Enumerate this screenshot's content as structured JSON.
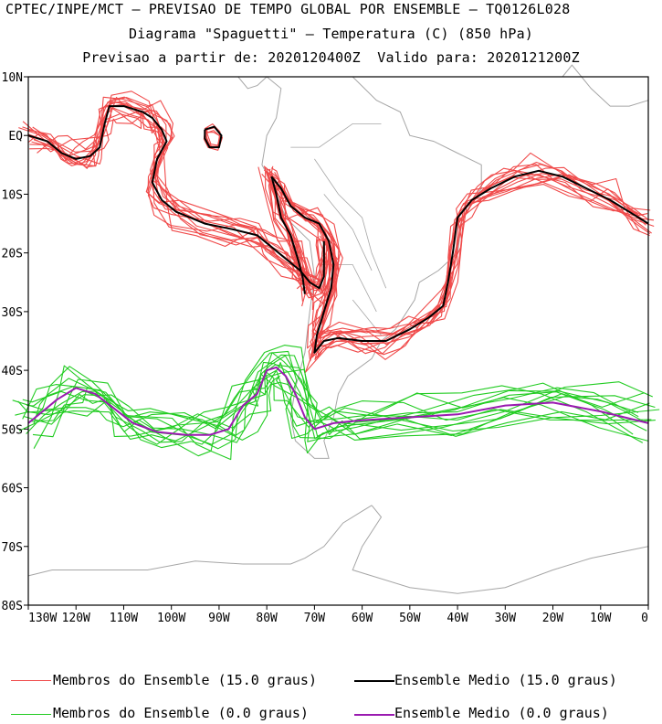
{
  "title": {
    "line1": "CPTEC/INPE/MCT – PREVISAO DE TEMPO GLOBAL POR ENSEMBLE – TQ0126L028",
    "line2": "Diagrama \"Spaguetti\" – Temperatura (C) (850 hPa)",
    "line3": "Previsao a partir de: 2020120400Z  Valido para: 2020121200Z"
  },
  "chart_data": {
    "type": "line",
    "projection": "lon-lat map",
    "xlim": [
      -130,
      0
    ],
    "ylim": [
      -80,
      10
    ],
    "x_ticks": [
      {
        "value": -130,
        "label": "130W"
      },
      {
        "value": -120,
        "label": "120W"
      },
      {
        "value": -110,
        "label": "110W"
      },
      {
        "value": -100,
        "label": "100W"
      },
      {
        "value": -90,
        "label": "90W"
      },
      {
        "value": -80,
        "label": "80W"
      },
      {
        "value": -70,
        "label": "70W"
      },
      {
        "value": -60,
        "label": "60W"
      },
      {
        "value": -50,
        "label": "50W"
      },
      {
        "value": -40,
        "label": "40W"
      },
      {
        "value": -30,
        "label": "30W"
      },
      {
        "value": -20,
        "label": "20W"
      },
      {
        "value": -10,
        "label": "10W"
      },
      {
        "value": 0,
        "label": "0"
      }
    ],
    "y_ticks": [
      {
        "value": 10,
        "label": "10N"
      },
      {
        "value": 0,
        "label": "EQ"
      },
      {
        "value": -10,
        "label": "10S"
      },
      {
        "value": -20,
        "label": "20S"
      },
      {
        "value": -30,
        "label": "30S"
      },
      {
        "value": -40,
        "label": "40S"
      },
      {
        "value": -50,
        "label": "50S"
      },
      {
        "value": -60,
        "label": "60S"
      },
      {
        "value": -70,
        "label": "70S"
      },
      {
        "value": -80,
        "label": "80S"
      }
    ],
    "colors": {
      "member15": "#f04a4a",
      "mean15": "#000000",
      "member0": "#22cc22",
      "mean0": "#9a1ab0",
      "coast": "#a6a6a6"
    },
    "legend": [
      {
        "label": "Membros do Ensemble (15.0 graus)",
        "color": "#f04a4a"
      },
      {
        "label": "Ensemble Medio (15.0 graus)",
        "color": "#000000"
      },
      {
        "label": "Membros do Ensemble (0.0 graus)",
        "color": "#22cc22"
      },
      {
        "label": "Ensemble Medio (0.0 graus)",
        "color": "#9a1ab0"
      }
    ],
    "series": [
      {
        "name": "Ensemble Medio (15.0 graus) - Pacific",
        "color": "#000000",
        "points": [
          [
            -130,
            0
          ],
          [
            -126,
            -1
          ],
          [
            -123,
            -3
          ],
          [
            -120,
            -4
          ],
          [
            -117,
            -3.5
          ],
          [
            -115,
            -2
          ],
          [
            -114,
            2
          ],
          [
            -113,
            5
          ],
          [
            -110,
            5
          ],
          [
            -106,
            4
          ],
          [
            -104,
            3
          ],
          [
            -102,
            1
          ],
          [
            -101,
            -1
          ],
          [
            -103,
            -4
          ],
          [
            -104,
            -8
          ],
          [
            -102,
            -11
          ],
          [
            -99,
            -13
          ],
          [
            -93,
            -15
          ],
          [
            -87,
            -16
          ],
          [
            -82,
            -17
          ],
          [
            -79,
            -19
          ],
          [
            -76,
            -21
          ],
          [
            -73,
            -23
          ],
          [
            -71,
            -25
          ],
          [
            -69,
            -26
          ],
          [
            -68,
            -24
          ],
          [
            -68,
            -20
          ],
          [
            -68,
            -18
          ]
        ]
      },
      {
        "name": "Ensemble Medio (15.0 graus) - small loop",
        "color": "#000000",
        "points": [
          [
            -93,
            1
          ],
          [
            -91,
            1.5
          ],
          [
            -89.5,
            0
          ],
          [
            -90,
            -2
          ],
          [
            -92,
            -2
          ],
          [
            -93,
            -0.5
          ],
          [
            -93,
            1
          ]
        ]
      },
      {
        "name": "Ensemble Medio (15.0 graus) - Andes loop",
        "color": "#000000",
        "points": [
          [
            -79,
            -7
          ],
          [
            -77,
            -9
          ],
          [
            -75,
            -12
          ],
          [
            -72,
            -14
          ],
          [
            -69,
            -15
          ],
          [
            -67,
            -18
          ],
          [
            -66,
            -22
          ],
          [
            -66.5,
            -26
          ],
          [
            -68,
            -30
          ],
          [
            -69.5,
            -34
          ],
          [
            -70,
            -37
          ],
          [
            -68,
            -35
          ],
          [
            -65,
            -34.5
          ],
          [
            -60,
            -35
          ],
          [
            -55,
            -35
          ],
          [
            -50,
            -33
          ],
          [
            -46,
            -31
          ],
          [
            -43,
            -29
          ],
          [
            -42,
            -25
          ],
          [
            -41,
            -20
          ],
          [
            -40,
            -14
          ],
          [
            -37,
            -11
          ],
          [
            -33,
            -9
          ],
          [
            -28,
            -7
          ],
          [
            -23,
            -6
          ],
          [
            -18,
            -7
          ],
          [
            -13,
            -9
          ],
          [
            -8,
            -11
          ],
          [
            -4,
            -13
          ],
          [
            0,
            -15
          ]
        ]
      },
      {
        "name": "Ensemble Medio (15.0 graus) - coastal",
        "color": "#000000",
        "points": [
          [
            -79,
            -7
          ],
          [
            -78,
            -10
          ],
          [
            -77,
            -14
          ],
          [
            -75,
            -17
          ],
          [
            -73.5,
            -21
          ],
          [
            -72.5,
            -24
          ],
          [
            -72,
            -27
          ]
        ]
      },
      {
        "name": "Ensemble Medio (0.0 graus)",
        "color": "#9a1ab0",
        "points": [
          [
            -130,
            -49
          ],
          [
            -127,
            -47
          ],
          [
            -124,
            -45
          ],
          [
            -120,
            -43
          ],
          [
            -116,
            -44
          ],
          [
            -112,
            -46.5
          ],
          [
            -108,
            -49
          ],
          [
            -103,
            -50.5
          ],
          [
            -97,
            -51
          ],
          [
            -92,
            -51
          ],
          [
            -88,
            -50
          ],
          [
            -85,
            -46
          ],
          [
            -82,
            -44
          ],
          [
            -80,
            -40
          ],
          [
            -78,
            -39.5
          ],
          [
            -76,
            -41
          ],
          [
            -74,
            -44
          ],
          [
            -72,
            -48
          ],
          [
            -70,
            -50
          ],
          [
            -66,
            -49
          ],
          [
            -60,
            -48.5
          ],
          [
            -50,
            -48
          ],
          [
            -40,
            -47.5
          ],
          [
            -30,
            -46
          ],
          [
            -20,
            -45.5
          ],
          [
            -10,
            -47
          ],
          [
            0,
            -49
          ]
        ]
      }
    ]
  }
}
